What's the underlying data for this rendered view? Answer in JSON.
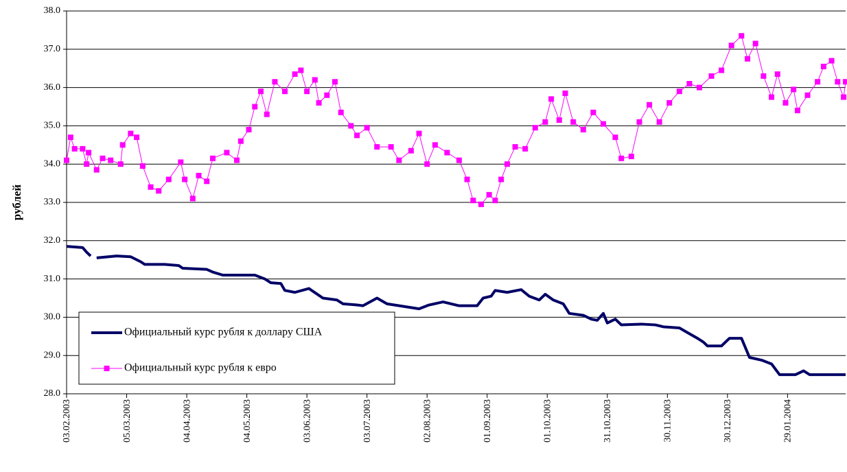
{
  "chart_data": {
    "type": "line",
    "y_label": "рублей",
    "ylim": [
      28,
      38
    ],
    "yticks": [
      {
        "value": 28,
        "label": "28.0"
      },
      {
        "value": 29,
        "label": "29.0"
      },
      {
        "value": 30,
        "label": "30.0"
      },
      {
        "value": 31,
        "label": "31.0"
      },
      {
        "value": 32,
        "label": "32.0"
      },
      {
        "value": 33,
        "label": "33.0"
      },
      {
        "value": 34,
        "label": "34.0"
      },
      {
        "value": 35,
        "label": "35.0"
      },
      {
        "value": 36,
        "label": "36.0"
      },
      {
        "value": 37,
        "label": "37.0"
      },
      {
        "value": 38,
        "label": "38.0"
      }
    ],
    "xlim": [
      "03.02.2003",
      "27.02.2004"
    ],
    "xticks": [
      "03.02.2003",
      "05.03.2003",
      "04.04.2003",
      "04.05.2003",
      "03.06.2003",
      "03.07.2003",
      "02.08.2003",
      "01.09.2003",
      "01.10.2003",
      "31.10.2003",
      "30.11.2003",
      "30.12.2003",
      "29.01.2004"
    ],
    "grid": true,
    "legend": "lower left",
    "series": [
      {
        "name": "Официальный курс рубля к доллару США",
        "color": "#000066",
        "marker": "none",
        "x": [
          "03.02.2003",
          "11.02.2003",
          "13.02.2003",
          "15.02.2003",
          "17.02.2003",
          "18.02.2003",
          "28.02.2003",
          "07.03.2003",
          "12.03.2003",
          "14.03.2003",
          "24.03.2003",
          "31.03.2003",
          "02.04.2003",
          "14.04.2003",
          "17.04.2003",
          "22.04.2003",
          "08.05.2003",
          "13.05.2003",
          "16.05.2003",
          "21.05.2003",
          "23.05.2003",
          "28.05.2003",
          "04.06.2003",
          "11.06.2003",
          "18.06.2003",
          "21.06.2003",
          "28.06.2003",
          "01.07.2003",
          "08.07.2003",
          "13.07.2003",
          "29.07.2003",
          "03.08.2003",
          "10.08.2003",
          "18.08.2003",
          "27.08.2003",
          "30.08.2003",
          "03.09.2003",
          "05.09.2003",
          "11.09.2003",
          "18.09.2003",
          "22.09.2003",
          "27.09.2003",
          "30.09.2003",
          "04.10.2003",
          "09.10.2003",
          "12.10.2003",
          "19.10.2003",
          "23.10.2003",
          "26.10.2003",
          "29.10.2003",
          "31.10.2003",
          "04.11.2003",
          "07.11.2003",
          "17.11.2003",
          "24.11.2003",
          "28.11.2003",
          "06.12.2003",
          "10.12.2003",
          "15.12.2003",
          "18.12.2003",
          "20.12.2003",
          "27.12.2003",
          "31.12.2003",
          "06.01.2004",
          "10.01.2004",
          "16.01.2004",
          "21.01.2004",
          "25.01.2004",
          "02.02.2004",
          "06.02.2004",
          "09.02.2004",
          "27.02.2004"
        ],
        "values": [
          31.85,
          31.82,
          31.7,
          31.6,
          null,
          31.55,
          31.6,
          31.58,
          31.45,
          31.38,
          31.38,
          31.35,
          31.28,
          31.25,
          31.18,
          31.1,
          31.1,
          31.0,
          30.9,
          30.88,
          30.7,
          30.65,
          30.75,
          30.5,
          30.45,
          30.35,
          30.32,
          30.3,
          30.5,
          30.35,
          30.22,
          30.32,
          30.4,
          30.3,
          30.3,
          30.5,
          30.55,
          30.7,
          30.65,
          30.72,
          30.55,
          30.45,
          30.6,
          30.45,
          30.35,
          30.1,
          30.05,
          29.95,
          29.92,
          30.1,
          29.85,
          29.95,
          29.8,
          29.82,
          29.8,
          29.75,
          29.72,
          29.6,
          29.45,
          29.35,
          29.25,
          29.25,
          29.45,
          29.45,
          28.95,
          28.88,
          28.78,
          28.5,
          28.5,
          28.6,
          28.5,
          28.5
        ]
      },
      {
        "name": "Официальный курс рубля к евро",
        "color": "#ff00ff",
        "marker": "square",
        "x": [
          "03.02.2003",
          "05.02.2003",
          "07.02.2003",
          "11.02.2003",
          "13.02.2003",
          "14.02.2003",
          "18.02.2003",
          "21.02.2003",
          "25.02.2003",
          "02.03.2003",
          "03.03.2003",
          "07.03.2003",
          "10.03.2003",
          "13.03.2003",
          "17.03.2003",
          "21.03.2003",
          "26.03.2003",
          "01.04.2003",
          "03.04.2003",
          "07.04.2003",
          "10.04.2003",
          "14.04.2003",
          "17.04.2003",
          "24.04.2003",
          "29.04.2003",
          "01.05.2003",
          "05.05.2003",
          "08.05.2003",
          "11.05.2003",
          "14.05.2003",
          "18.05.2003",
          "23.05.2003",
          "28.05.2003",
          "31.05.2003",
          "03.06.2003",
          "07.06.2003",
          "09.06.2003",
          "13.06.2003",
          "17.06.2003",
          "20.06.2003",
          "25.06.2003",
          "28.06.2003",
          "03.07.2003",
          "08.07.2003",
          "15.07.2003",
          "19.07.2003",
          "25.07.2003",
          "29.07.2003",
          "02.08.2003",
          "06.08.2003",
          "12.08.2003",
          "18.08.2003",
          "22.08.2003",
          "25.08.2003",
          "29.08.2003",
          "02.09.2003",
          "05.09.2003",
          "08.09.2003",
          "11.09.2003",
          "15.09.2003",
          "20.09.2003",
          "25.09.2003",
          "30.09.2003",
          "03.10.2003",
          "07.10.2003",
          "10.10.2003",
          "14.10.2003",
          "19.10.2003",
          "24.10.2003",
          "29.10.2003",
          "04.11.2003",
          "07.11.2003",
          "12.11.2003",
          "16.11.2003",
          "21.11.2003",
          "26.11.2003",
          "01.12.2003",
          "06.12.2003",
          "11.12.2003",
          "16.12.2003",
          "22.12.2003",
          "27.12.2003",
          "01.01.2004",
          "06.01.2004",
          "09.01.2004",
          "13.01.2004",
          "17.01.2004",
          "21.01.2004",
          "24.01.2004",
          "28.01.2004",
          "01.02.2004",
          "03.02.2004",
          "08.02.2004",
          "13.02.2004",
          "16.02.2004",
          "20.02.2004",
          "23.02.2004",
          "26.02.2004",
          "27.02.2004"
        ],
        "values": [
          34.1,
          34.7,
          34.4,
          34.4,
          34.0,
          34.3,
          33.85,
          34.15,
          34.1,
          34.0,
          34.5,
          34.8,
          34.7,
          33.95,
          33.4,
          33.3,
          33.6,
          34.05,
          33.6,
          33.1,
          33.7,
          33.55,
          34.15,
          34.3,
          34.1,
          34.6,
          34.9,
          35.5,
          35.9,
          35.3,
          36.15,
          35.9,
          36.35,
          36.45,
          35.9,
          36.2,
          35.6,
          35.8,
          36.15,
          35.35,
          35.0,
          34.75,
          34.95,
          34.45,
          34.45,
          34.1,
          34.35,
          34.8,
          34.0,
          34.5,
          34.3,
          34.1,
          33.6,
          33.05,
          32.95,
          33.2,
          33.05,
          33.6,
          34.0,
          34.45,
          34.4,
          34.95,
          35.1,
          35.7,
          35.15,
          35.85,
          35.1,
          34.9,
          35.35,
          35.05,
          34.7,
          34.15,
          34.2,
          35.1,
          35.55,
          35.1,
          35.6,
          35.9,
          36.1,
          36.0,
          36.3,
          36.45,
          37.1,
          37.35,
          36.75,
          37.15,
          36.3,
          35.75,
          36.35,
          35.6,
          35.95,
          35.4,
          35.8,
          36.15,
          36.55,
          36.7,
          36.15,
          35.75,
          36.15
        ]
      }
    ]
  }
}
